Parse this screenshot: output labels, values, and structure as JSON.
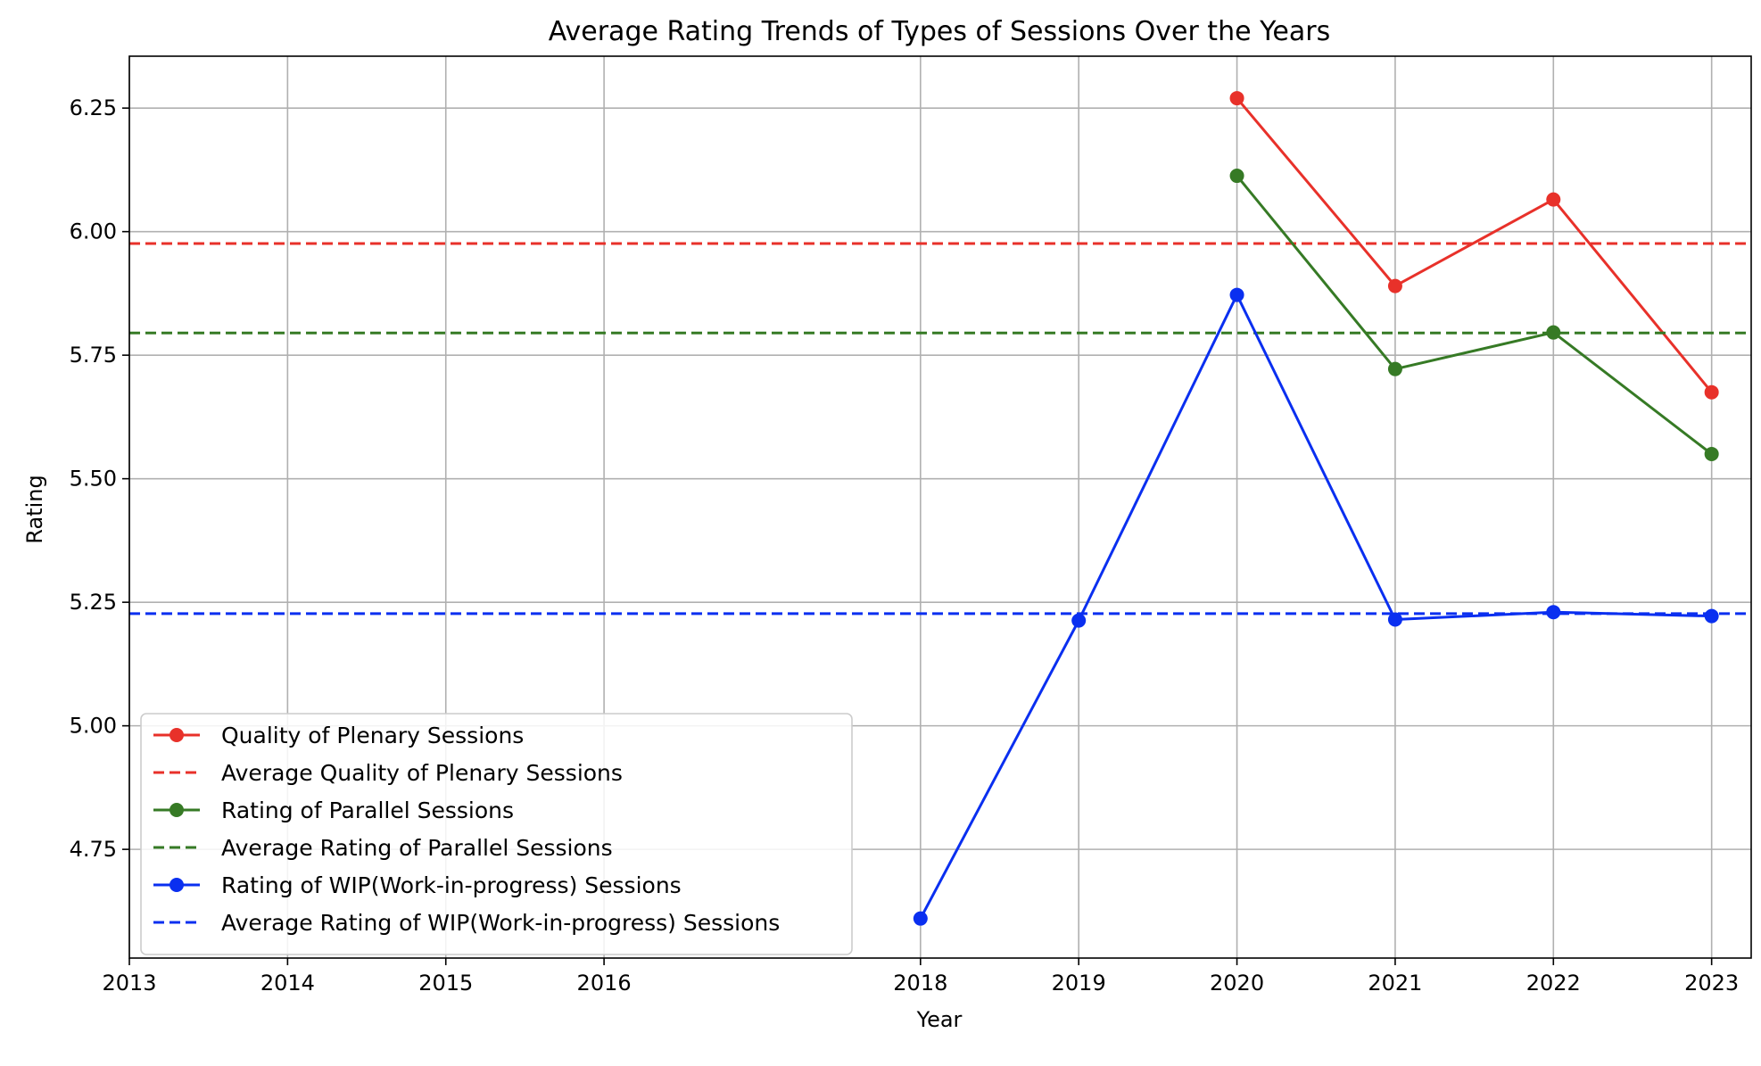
{
  "chart_data": {
    "type": "line",
    "title": "Average Rating Trends of Types of Sessions Over the Years",
    "xlabel": "Year",
    "ylabel": "Rating",
    "xlim": [
      2013,
      2023.25
    ],
    "ylim": [
      4.53,
      6.355
    ],
    "x_ticks": [
      2013,
      2014,
      2015,
      2016,
      2018,
      2019,
      2020,
      2021,
      2022,
      2023
    ],
    "y_ticks": [
      4.75,
      5.0,
      5.25,
      5.5,
      5.75,
      6.0,
      6.25
    ],
    "y_tick_labels": [
      "4.75",
      "5.00",
      "5.25",
      "5.50",
      "5.75",
      "6.00",
      "6.25"
    ],
    "grid": true,
    "legend_position": "lower-left",
    "series": [
      {
        "name": "Quality of Plenary Sessions",
        "style": "solid-marker",
        "color": "#e8312a",
        "x": [
          2020,
          2021,
          2022,
          2023
        ],
        "y": [
          6.27,
          5.89,
          6.065,
          5.675
        ]
      },
      {
        "name": "Average Quality of Plenary Sessions",
        "style": "dashed",
        "color": "#e8312a",
        "value": 5.976
      },
      {
        "name": "Rating of Parallel Sessions",
        "style": "solid-marker",
        "color": "#367a25",
        "x": [
          2020,
          2021,
          2022,
          2023
        ],
        "y": [
          6.113,
          5.722,
          5.796,
          5.55
        ]
      },
      {
        "name": "Average Rating of Parallel Sessions",
        "style": "dashed",
        "color": "#367a25",
        "value": 5.795
      },
      {
        "name": "Rating of WIP(Work-in-progress) Sessions",
        "style": "solid-marker",
        "color": "#0a2ff0",
        "x": [
          2018,
          2019,
          2020,
          2021,
          2022,
          2023
        ],
        "y": [
          4.61,
          5.213,
          5.872,
          5.215,
          5.23,
          5.222
        ]
      },
      {
        "name": "Average Rating of WIP(Work-in-progress) Sessions",
        "style": "dashed",
        "color": "#0a2ff0",
        "value": 5.227
      }
    ]
  }
}
